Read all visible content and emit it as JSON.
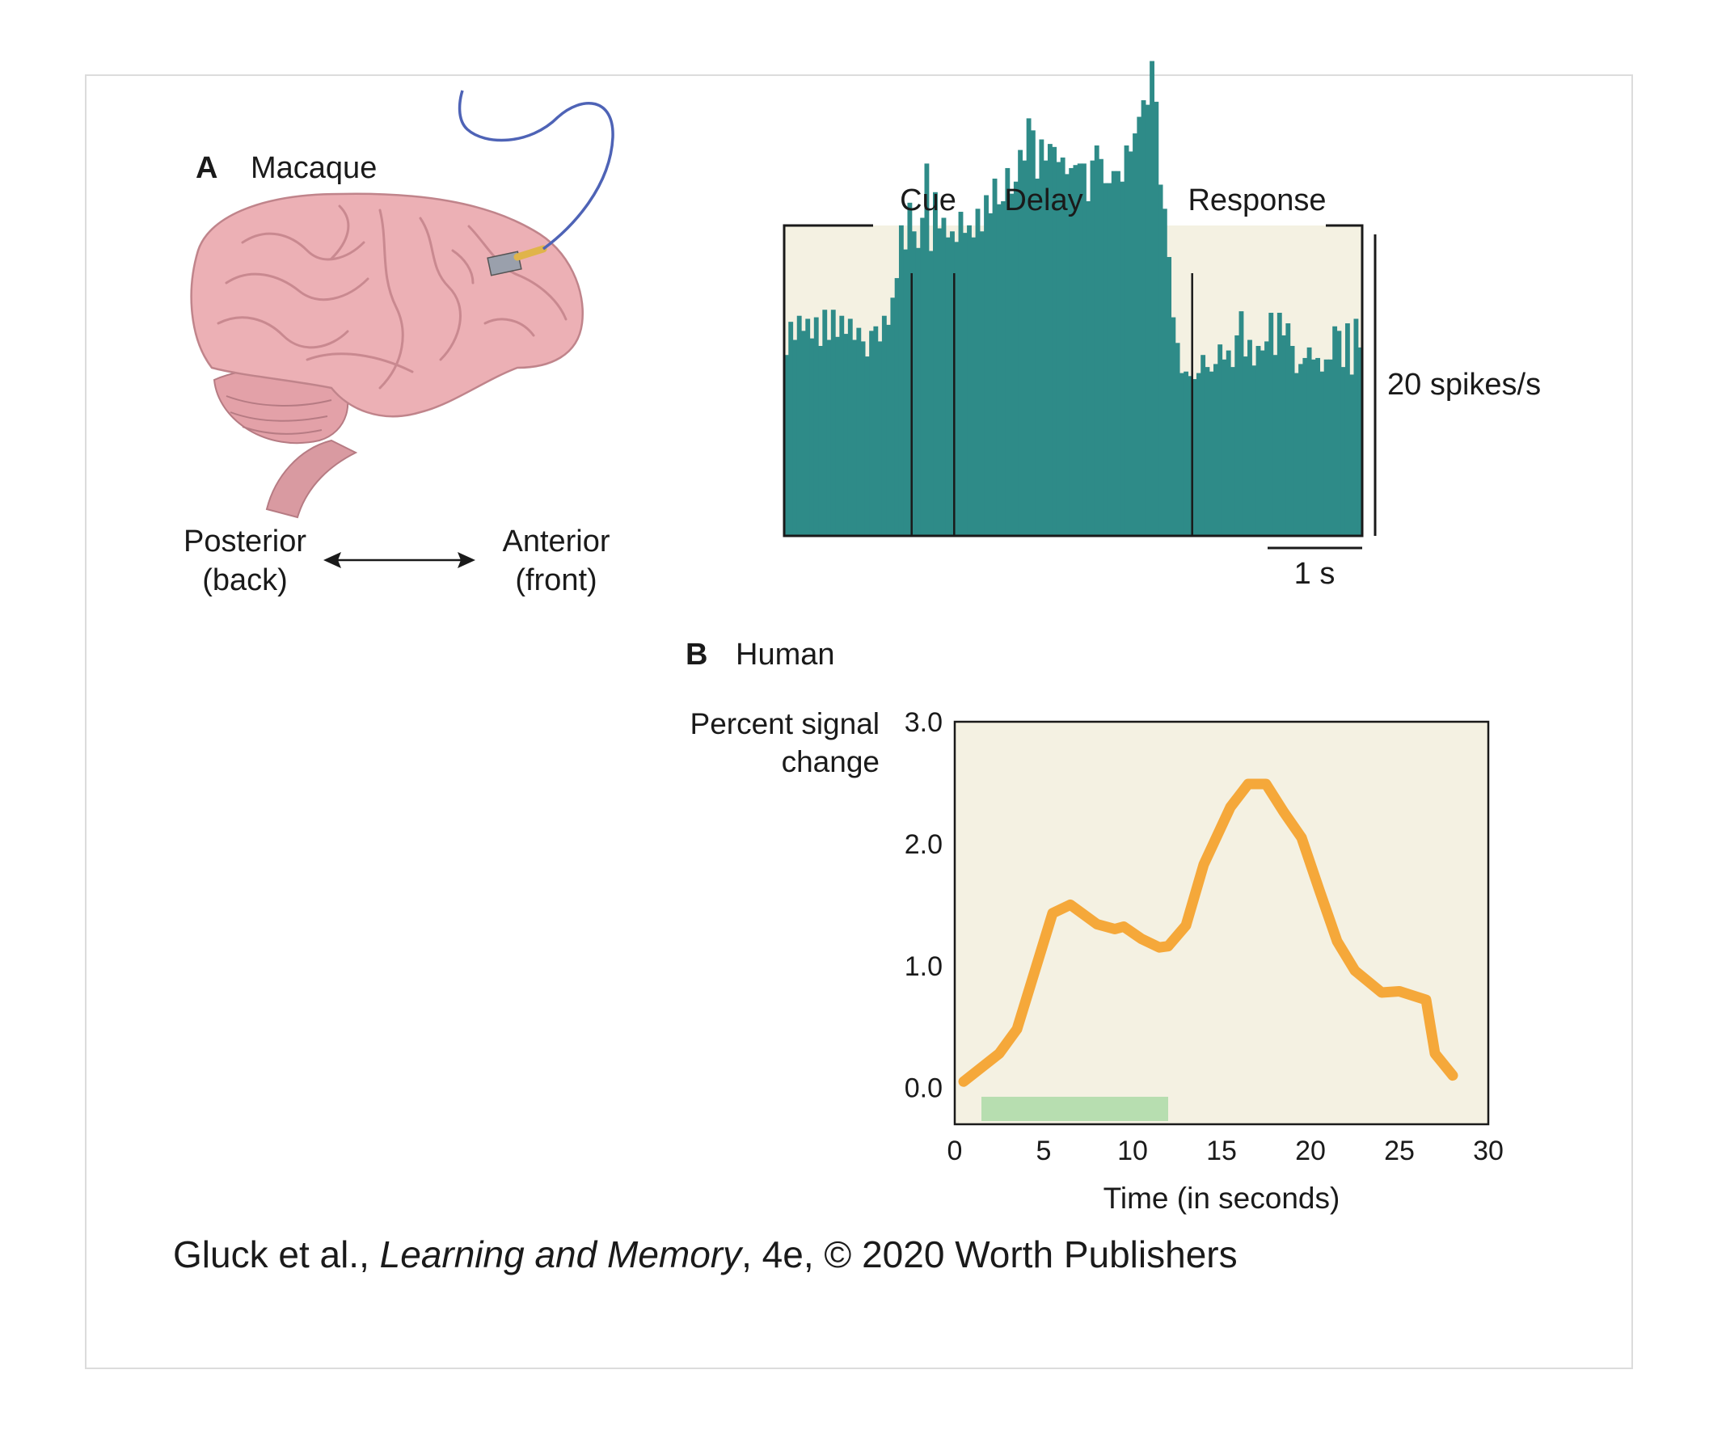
{
  "panel_a": {
    "letter": "A",
    "title": "Macaque",
    "posterior_label": "Posterior",
    "posterior_sub": "(back)",
    "anterior_label": "Anterior",
    "anterior_sub": "(front)"
  },
  "panel_b": {
    "letter": "B",
    "title": "Human"
  },
  "caption": {
    "authors": "Gluck et al., ",
    "book": "Learning and Memory",
    "rest": ", 4e, © 2020 Worth Publishers"
  },
  "colors": {
    "histogram_fill": "#2e8b88",
    "plot_background": "#f4f1e2",
    "line_color": "#f5a83a",
    "stimulus_bar": "#b7deb0",
    "brain": "#e9aab0",
    "electrode_wire": "#4e63b6"
  },
  "chart_data": [
    {
      "type": "bar",
      "title": "",
      "phase_labels": [
        "Cue",
        "Delay",
        "Response"
      ],
      "scale_bar_x_label": "1 s",
      "scale_bar_y_label": "20 spikes/s",
      "x_range_s": [
        0,
        6.8
      ],
      "epoch_boundaries_s": [
        1.5,
        2.0,
        4.8
      ],
      "bin_width_s": 0.05,
      "values": [
        12.0,
        14.2,
        13.0,
        14.6,
        13.6,
        14.4,
        13.1,
        14.5,
        12.6,
        15.0,
        13.0,
        15.0,
        13.2,
        14.6,
        13.4,
        14.4,
        13.0,
        13.8,
        12.9,
        11.9,
        13.6,
        13.9,
        12.9,
        14.6,
        14.0,
        15.8,
        17.1,
        20.6,
        19.0,
        22.1,
        20.2,
        19.1,
        21.1,
        24.7,
        18.9,
        22.8,
        20.4,
        21.1,
        19.8,
        20.2,
        19.5,
        21.5,
        20.1,
        20.6,
        19.8,
        21.7,
        20.2,
        22.6,
        21.4,
        23.7,
        22.0,
        22.2,
        24.4,
        22.7,
        23.5,
        25.6,
        24.9,
        27.7,
        26.9,
        23.7,
        26.3,
        24.9,
        26.0,
        25.8,
        24.8,
        25.1,
        24.0,
        24.4,
        24.6,
        24.7,
        24.7,
        22.2,
        24.9,
        25.9,
        25.0,
        23.4,
        23.4,
        24.2,
        24.2,
        23.5,
        25.9,
        25.5,
        26.7,
        27.8,
        28.9,
        28.6,
        31.5,
        28.8,
        23.3,
        21.7,
        18.5,
        14.5,
        12.8,
        10.8,
        10.9,
        10.6,
        10.4,
        10.8,
        12.0,
        11.2,
        10.9,
        11.4,
        12.7,
        11.7,
        12.3,
        11.2,
        13.3,
        14.9,
        11.9,
        13.0,
        11.3,
        12.6,
        12.3,
        12.9,
        14.8,
        12.0,
        14.8,
        13.3,
        14.1,
        12.6,
        10.8,
        11.4,
        11.8,
        12.5,
        11.7,
        11.8,
        10.9,
        11.7,
        11.7,
        13.9,
        13.6,
        11.2,
        14.1,
        10.7,
        14.4,
        12.5
      ]
    },
    {
      "type": "line",
      "xlabel": "Time (in seconds)",
      "ylabel_line1": "Percent signal",
      "ylabel_line2": "change",
      "xlim": [
        0,
        30
      ],
      "ylim": [
        -0.3,
        3.0
      ],
      "x_ticks": [
        0,
        5,
        10,
        15,
        20,
        25,
        30
      ],
      "x_tick_labels": [
        "0",
        "5",
        "10",
        "15",
        "20",
        "25",
        "30"
      ],
      "y_ticks": [
        0,
        1,
        2,
        3
      ],
      "y_tick_labels": [
        "0.0",
        "1.0",
        "2.0",
        "3.0"
      ],
      "stimulus_interval": [
        1.5,
        12
      ],
      "x": [
        0.5,
        2.5,
        3.5,
        5.5,
        6.5,
        8.0,
        9.0,
        9.5,
        10.5,
        11.5,
        12.0,
        13.0,
        14.0,
        15.5,
        16.5,
        17.5,
        18.5,
        19.5,
        20.5,
        21.5,
        22.5,
        24.0,
        25.0,
        26.5,
        27.0,
        28.0
      ],
      "y": [
        0.05,
        0.28,
        0.48,
        1.43,
        1.5,
        1.34,
        1.3,
        1.32,
        1.22,
        1.15,
        1.16,
        1.33,
        1.83,
        2.3,
        2.49,
        2.49,
        2.26,
        2.05,
        1.62,
        1.2,
        0.96,
        0.78,
        0.79,
        0.72,
        0.28,
        0.1
      ]
    }
  ]
}
